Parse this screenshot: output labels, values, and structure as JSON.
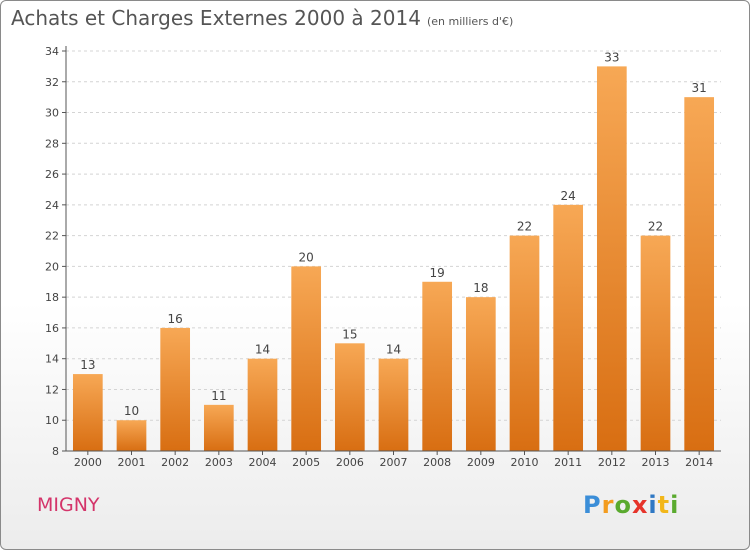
{
  "chart_data": {
    "type": "bar",
    "title": "Achats et Charges Externes 2000 à 2014",
    "subtitle": "(en milliers d'€)",
    "categories": [
      "2000",
      "2001",
      "2002",
      "2003",
      "2004",
      "2005",
      "2006",
      "2007",
      "2008",
      "2009",
      "2010",
      "2011",
      "2012",
      "2013",
      "2014"
    ],
    "values": [
      13,
      10,
      16,
      11,
      14,
      20,
      15,
      14,
      19,
      18,
      22,
      24,
      33,
      22,
      31
    ],
    "ylim": [
      8,
      34
    ],
    "yticks": [
      8,
      10,
      12,
      14,
      16,
      18,
      20,
      22,
      24,
      26,
      28,
      30,
      32,
      34
    ],
    "xlabel": "",
    "ylabel": "",
    "grid": true,
    "bar_color": "#f5a04a"
  },
  "footer": {
    "town": "MIGNY",
    "logo": "Proxiti"
  }
}
